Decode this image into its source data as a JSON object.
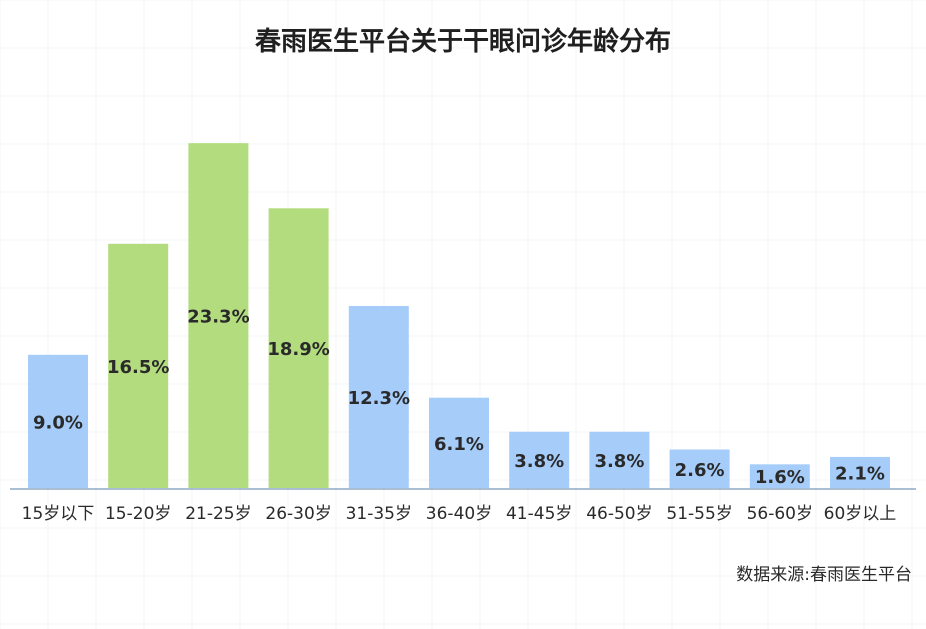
{
  "chart_data": {
    "type": "bar",
    "title": "春雨医生平台关于干眼问诊年龄分布",
    "categories": [
      "15岁以下",
      "15-20岁",
      "21-25岁",
      "26-30岁",
      "31-35岁",
      "36-40岁",
      "41-45岁",
      "46-50岁",
      "51-55岁",
      "56-60岁",
      "60岁以上"
    ],
    "values": [
      9.0,
      16.5,
      23.3,
      18.9,
      12.3,
      6.1,
      3.8,
      3.8,
      2.6,
      1.6,
      2.1
    ],
    "value_labels": [
      "9.0%",
      "16.5%",
      "23.3%",
      "18.9%",
      "12.3%",
      "6.1%",
      "3.8%",
      "3.8%",
      "2.6%",
      "1.6%",
      "2.1%"
    ],
    "highlighted": [
      false,
      true,
      true,
      true,
      false,
      false,
      false,
      false,
      false,
      false,
      false
    ],
    "colors": {
      "default": "#a6cdfa",
      "highlight": "#b2dc7e",
      "axis": "#8fa8c4",
      "grid": "#f1f5f9"
    },
    "ylim": [
      0,
      25
    ],
    "grid": true,
    "xlabel": "",
    "ylabel": "",
    "source": "数据来源:春雨医生平台"
  }
}
